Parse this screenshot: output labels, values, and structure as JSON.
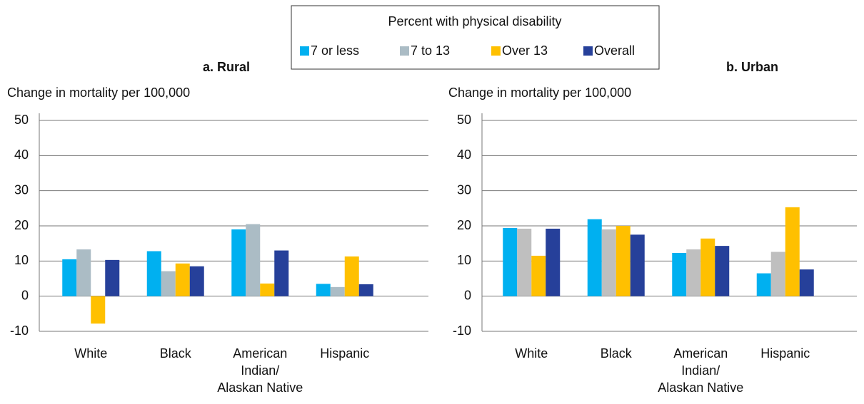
{
  "chart_data": [
    {
      "type": "bar",
      "title": "a. Rural",
      "y_label": "Change in mortality per 100,000",
      "legend_title": "Percent with physical disability",
      "categories": [
        "White",
        "Black",
        "American Indian/ Alaskan Native",
        "Hispanic"
      ],
      "series": [
        {
          "name": "7 or less",
          "color": "#00b0f0",
          "values": [
            10.5,
            12.8,
            19,
            3.5
          ]
        },
        {
          "name": "7 to 13",
          "color": "#abbcc5",
          "values": [
            13.3,
            7.1,
            20.5,
            2.6
          ]
        },
        {
          "name": "Over 13",
          "color": "#ffc000",
          "values": [
            -7.8,
            9.3,
            3.6,
            11.3
          ]
        },
        {
          "name": "Overall",
          "color": "#26409a",
          "values": [
            10.3,
            8.5,
            13,
            3.4
          ]
        }
      ],
      "ylim": [
        -10,
        50
      ],
      "yticks": [
        -10,
        0,
        10,
        20,
        30,
        40,
        50
      ],
      "grid": true
    },
    {
      "type": "bar",
      "title": "b. Urban",
      "y_label": "Change in mortality per 100,000",
      "categories": [
        "White",
        "Black",
        "American Indian/ Alaskan Native",
        "Hispanic"
      ],
      "series": [
        {
          "name": "7 or less",
          "color": "#00b0f0",
          "values": [
            19.4,
            21.9,
            12.3,
            6.5
          ]
        },
        {
          "name": "7 to 13",
          "color": "#bfbfbf",
          "values": [
            19.2,
            19,
            13.3,
            12.6
          ]
        },
        {
          "name": "Over 13",
          "color": "#ffc000",
          "values": [
            11.5,
            20,
            16.4,
            25.3
          ]
        },
        {
          "name": "Overall",
          "color": "#26409a",
          "values": [
            19.2,
            17.5,
            14.3,
            7.6
          ]
        }
      ],
      "ylim": [
        -10,
        50
      ],
      "yticks": [
        -10,
        0,
        10,
        20,
        30,
        40,
        50
      ],
      "grid": true
    }
  ]
}
